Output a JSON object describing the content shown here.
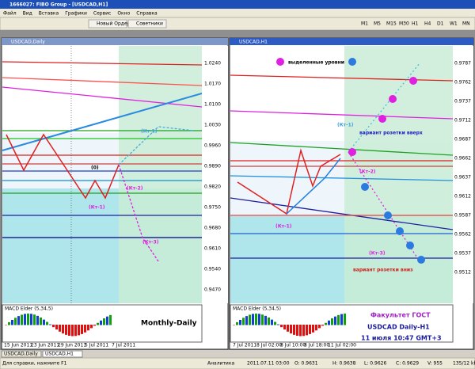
{
  "window": {
    "title": "1666027: FIBO Group - [USDCAD,H1]"
  },
  "menu": [
    "Файл",
    "Вид",
    "Вставка",
    "Графики",
    "Сервис",
    "Окно",
    "Справка"
  ],
  "toolbar": {
    "new_order": "Новый Ордер",
    "experts": "Советники",
    "timeframes": [
      "M1",
      "M5",
      "M15",
      "M30",
      "H1",
      "H4",
      "D1",
      "W1",
      "MN"
    ]
  },
  "left_chart": {
    "title": "USDCAD,Daily",
    "annotations": [
      "(Кт-1)",
      "(0)",
      "(Кт-2)",
      "(Кт-1)",
      "(Кт-3)"
    ],
    "caption": "Monthly-Daily",
    "macd": "MACD Elder (5,34,5)",
    "prices": [
      "1.0240",
      "1.0170",
      "1.0100",
      "1.0030",
      "0.9960",
      "0.9890",
      "0.9820",
      "0.9750",
      "0.9680",
      "0.9610",
      "0.9540",
      "0.9470"
    ],
    "dates": [
      "15 Jun 2011",
      "23 Jun 2011",
      "29 Jun 2011",
      "5 Jul 2011",
      "7 Jul 2011"
    ]
  },
  "right_chart": {
    "title": "USDCAD,H1",
    "legend": "выделенные уровни",
    "annotations": [
      "(Кт-1)",
      "(Кт-2)",
      "(Кт-1)",
      "(Кт-3)"
    ],
    "up_variant": "вариант розетки вверх",
    "down_variant": "вариант розетки вниз",
    "caption": [
      "Факультет ГОСТ",
      "USDCAD Daily-H1",
      "11 июля 10:47 GMT+3"
    ],
    "macd": "MACD Elder (5,34,5)",
    "prices": [
      "0.9787",
      "0.9762",
      "0.9737",
      "0.9712",
      "0.9687",
      "0.9662",
      "0.9637",
      "0.9612",
      "0.9587",
      "0.9562",
      "0.9537",
      "0.9512"
    ],
    "dates": [
      "7 Jul 2011",
      "8 Jul 02:00",
      "8 Jul 10:00",
      "8 Jul 18:00",
      "11 Jul 02:00"
    ]
  },
  "tabs": [
    "USDCAD,Daily",
    "USDCAD,H1"
  ],
  "status": [
    "Для справки, нажмите F1",
    "Аналитика",
    "2011.07.11 03:00",
    "O: 0.9631",
    "H: 0.9638",
    "L: 0.9626",
    "C: 0.9629",
    "V: 955",
    "135/12 kb"
  ]
}
